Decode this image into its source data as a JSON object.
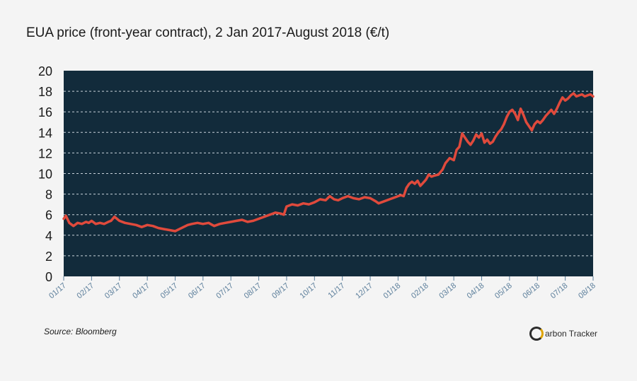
{
  "title": "EUA price (front-year contract), 2 Jan 2017-August 2018 (€/t)",
  "source": "Source: Bloomberg",
  "logo": {
    "text": "arbon Tracker",
    "mark": "C"
  },
  "colors": {
    "plot_bg": "#122b3b",
    "line": "#e04a3c",
    "grid": "#c8d2da",
    "axis_text": "#5a7d9a"
  },
  "chart_data": {
    "type": "line",
    "title": "EUA price (front-year contract), 2 Jan 2017-August 2018 (€/t)",
    "xlabel": "",
    "ylabel": "",
    "ylim": [
      0,
      20
    ],
    "yticks": [
      "0",
      "2",
      "4",
      "6",
      "8",
      "10",
      "12",
      "14",
      "16",
      "18",
      "20"
    ],
    "grid": "horizontal dashed",
    "categories": [
      "01/17",
      "02/17",
      "03/17",
      "04/17",
      "05/17",
      "06/17",
      "07/17",
      "08/17",
      "09/17",
      "10/17",
      "11/17",
      "12/17",
      "01/18",
      "02/18",
      "03/18",
      "04/18",
      "05/18",
      "06/18",
      "07/18",
      "08/18"
    ],
    "series": [
      {
        "name": "EUA price",
        "x": [
          0,
          0.08,
          0.2,
          0.35,
          0.5,
          0.65,
          0.8,
          0.9,
          1.0,
          1.15,
          1.3,
          1.45,
          1.6,
          1.7,
          1.82,
          2.0,
          2.2,
          2.4,
          2.6,
          2.8,
          3.0,
          3.2,
          3.4,
          3.6,
          3.8,
          4.0,
          4.15,
          4.3,
          4.45,
          4.6,
          4.8,
          5.0,
          5.2,
          5.4,
          5.6,
          5.8,
          6.0,
          6.2,
          6.4,
          6.6,
          6.8,
          7.0,
          7.2,
          7.4,
          7.6,
          7.8,
          7.9,
          8.0,
          8.2,
          8.4,
          8.6,
          8.8,
          9.0,
          9.2,
          9.4,
          9.55,
          9.7,
          9.85,
          10.0,
          10.2,
          10.4,
          10.6,
          10.8,
          11.0,
          11.2,
          11.3,
          11.5,
          11.7,
          11.9,
          12.0,
          12.1,
          12.2,
          12.3,
          12.4,
          12.5,
          12.6,
          12.7,
          12.8,
          12.9,
          13.0,
          13.1,
          13.2,
          13.3,
          13.45,
          13.6,
          13.7,
          13.85,
          14.0,
          14.1,
          14.2,
          14.3,
          14.4,
          14.5,
          14.6,
          14.7,
          14.8,
          14.9,
          15.0,
          15.1,
          15.2,
          15.3,
          15.4,
          15.5,
          15.6,
          15.7,
          15.8,
          15.9,
          16.0,
          16.1,
          16.2,
          16.3,
          16.4,
          16.5,
          16.6,
          16.7,
          16.8,
          16.9,
          17.0,
          17.1,
          17.2,
          17.3,
          17.4,
          17.5,
          17.6,
          17.7,
          17.8,
          17.9,
          18.0,
          18.1,
          18.2,
          18.3,
          18.4,
          18.5,
          18.6,
          18.7,
          18.8,
          18.9,
          19.0
        ],
        "values": [
          5.6,
          5.9,
          5.2,
          4.9,
          5.2,
          5.1,
          5.3,
          5.2,
          5.4,
          5.1,
          5.2,
          5.1,
          5.3,
          5.4,
          5.8,
          5.4,
          5.2,
          5.1,
          5.0,
          4.8,
          5.0,
          4.9,
          4.7,
          4.6,
          4.5,
          4.4,
          4.6,
          4.8,
          5.0,
          5.1,
          5.2,
          5.1,
          5.2,
          4.9,
          5.1,
          5.2,
          5.3,
          5.4,
          5.5,
          5.3,
          5.4,
          5.6,
          5.8,
          6.0,
          6.2,
          6.1,
          6.0,
          6.8,
          7.0,
          6.9,
          7.1,
          7.0,
          7.2,
          7.5,
          7.4,
          7.8,
          7.5,
          7.4,
          7.6,
          7.8,
          7.6,
          7.5,
          7.7,
          7.6,
          7.3,
          7.1,
          7.3,
          7.5,
          7.7,
          7.8,
          7.9,
          7.8,
          8.6,
          9.0,
          9.2,
          9.0,
          9.3,
          8.8,
          9.1,
          9.4,
          9.9,
          9.7,
          9.8,
          9.9,
          10.4,
          11.0,
          11.5,
          11.3,
          12.3,
          12.6,
          13.9,
          13.5,
          13.1,
          12.8,
          13.2,
          13.8,
          13.5,
          13.9,
          13.0,
          13.3,
          12.9,
          13.1,
          13.6,
          14.0,
          14.3,
          14.8,
          15.5,
          16.0,
          16.2,
          15.8,
          15.2,
          16.3,
          15.7,
          15.0,
          14.6,
          14.2,
          14.8,
          15.1,
          14.9,
          15.2,
          15.6,
          15.9,
          16.2,
          15.8,
          16.3,
          16.9,
          17.4,
          17.1,
          17.3,
          17.6,
          17.8,
          17.5,
          17.6,
          17.7,
          17.5,
          17.6,
          17.7,
          17.5
        ]
      }
    ]
  }
}
